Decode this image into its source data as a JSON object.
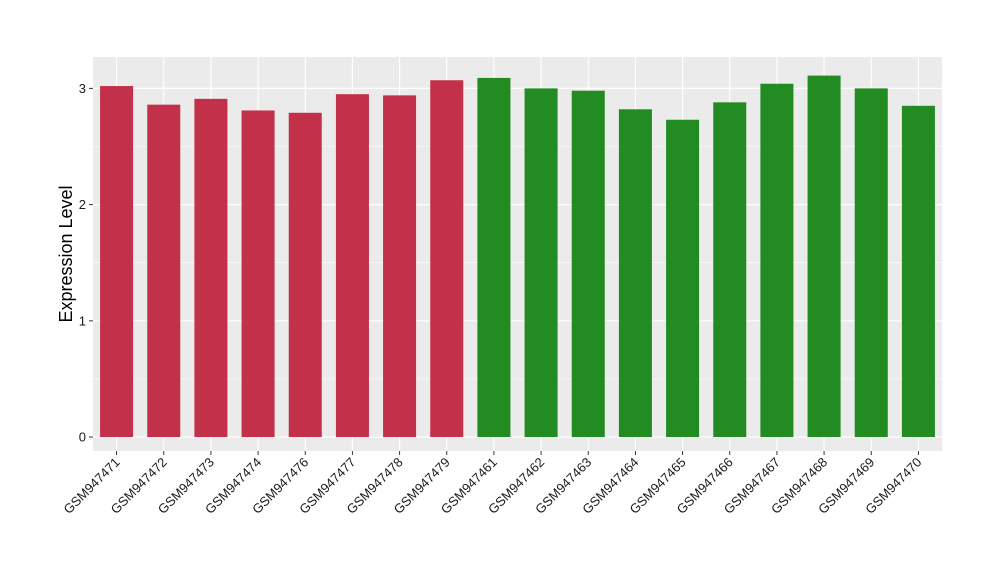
{
  "chart_data": {
    "type": "bar",
    "title": "",
    "xlabel": "",
    "ylabel": "Expression Level",
    "ylim": [
      -0.12,
      3.27
    ],
    "yticks": [
      0,
      1,
      2,
      3
    ],
    "grid": true,
    "legend": "none",
    "categories": [
      "GSM947471",
      "GSM947472",
      "GSM947473",
      "GSM947474",
      "GSM947476",
      "GSM947477",
      "GSM947478",
      "GSM947479",
      "GSM947461",
      "GSM947462",
      "GSM947463",
      "GSM947464",
      "GSM947465",
      "GSM947466",
      "GSM947467",
      "GSM947468",
      "GSM947469",
      "GSM947470"
    ],
    "values": [
      3.02,
      2.86,
      2.91,
      2.81,
      2.79,
      2.95,
      2.94,
      3.07,
      3.09,
      3.0,
      2.98,
      2.82,
      2.73,
      2.88,
      3.04,
      3.11,
      3.0,
      2.85
    ],
    "group_colors": [
      "#c3304a",
      "#228b22"
    ],
    "bar_group": [
      0,
      0,
      0,
      0,
      0,
      0,
      0,
      0,
      1,
      1,
      1,
      1,
      1,
      1,
      1,
      1,
      1,
      1
    ],
    "panel_background": "#ebebeb",
    "grid_color": "#ffffff"
  }
}
